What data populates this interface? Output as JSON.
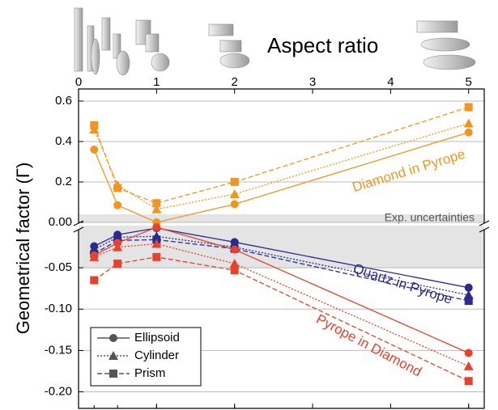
{
  "chart_data": {
    "type": "line",
    "x_label": "Aspect ratio",
    "y_label": "Geometrical factor (Γ)",
    "x": [
      0.2,
      0.5,
      1,
      2,
      5
    ],
    "xlim": [
      0,
      5.2
    ],
    "xticks": [
      0,
      1,
      2,
      3,
      4,
      5
    ],
    "ylim": [
      -0.02,
      0.66
    ],
    "yticks": [
      {
        "value": 0,
        "label": "0.00"
      },
      0.2,
      0.4,
      0.6
    ],
    "y2lim": [
      -0.22,
      0
    ],
    "y2ticks": [
      {
        "value": -0.2,
        "label": "-0.20"
      },
      -0.15,
      {
        "value": -0.1,
        "label": "-0.10"
      },
      -0.05
    ],
    "grid": true,
    "band": {
      "label": "Exp. uncertainties",
      "ylim": [
        0,
        0.04
      ],
      "y2lim": [
        -0.05,
        0
      ]
    },
    "shapes": [
      {
        "name": "Ellipsoid",
        "marker": "circle",
        "dash": "solid"
      },
      {
        "name": "Cylinder",
        "marker": "triangle",
        "dash": "dotted"
      },
      {
        "name": "Prism",
        "marker": "square",
        "dash": "dashed"
      }
    ],
    "legend": "lower left",
    "groups": [
      {
        "label": "Diamond in Pyrope",
        "color": "#f0961e",
        "axis": "y",
        "series": [
          {
            "values": [
              0.36,
              0.085,
              0.0,
              0.09,
              0.445
            ]
          },
          {
            "values": [
              0.46,
              0.185,
              0.065,
              0.14,
              0.49
            ]
          },
          {
            "values": [
              0.48,
              0.17,
              0.095,
              0.2,
              0.57
            ]
          }
        ]
      },
      {
        "label": "Quartz in Pyrope",
        "color": "#2b2b8f",
        "axis": "y2",
        "series": [
          {
            "values": [
              -0.024,
              -0.01,
              -0.002,
              -0.019,
              -0.074
            ]
          },
          {
            "values": [
              -0.028,
              -0.013,
              -0.012,
              -0.025,
              -0.083
            ]
          },
          {
            "values": [
              -0.033,
              -0.017,
              -0.016,
              -0.027,
              -0.09
            ]
          }
        ]
      },
      {
        "label": "Pyrope in Diamond",
        "color": "#e8412c",
        "axis": "y2",
        "series": [
          {
            "values": [
              -0.035,
              -0.02,
              -0.001,
              -0.028,
              -0.153
            ]
          },
          {
            "values": [
              -0.037,
              -0.025,
              -0.021,
              -0.045,
              -0.169
            ]
          },
          {
            "values": [
              -0.065,
              -0.045,
              -0.037,
              -0.053,
              -0.187
            ]
          }
        ]
      }
    ]
  }
}
